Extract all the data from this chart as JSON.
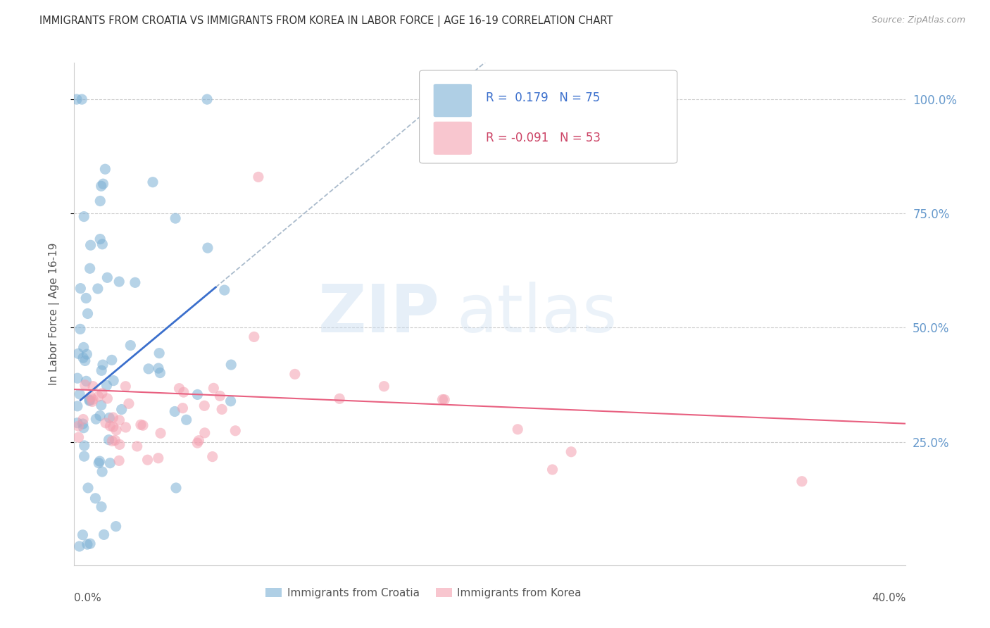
{
  "title": "IMMIGRANTS FROM CROATIA VS IMMIGRANTS FROM KOREA IN LABOR FORCE | AGE 16-19 CORRELATION CHART",
  "source": "Source: ZipAtlas.com",
  "ylabel": "In Labor Force | Age 16-19",
  "ytick_labels": [
    "100.0%",
    "75.0%",
    "50.0%",
    "25.0%"
  ],
  "ytick_values": [
    1.0,
    0.75,
    0.5,
    0.25
  ],
  "xlim": [
    0.0,
    0.4
  ],
  "ylim": [
    -0.02,
    1.08
  ],
  "r_croatia": 0.179,
  "n_croatia": 75,
  "r_korea": -0.091,
  "n_korea": 53,
  "color_croatia": "#7BAFD4",
  "color_korea": "#F4A0B0",
  "line_color_croatia": "#3B6FCC",
  "line_color_korea": "#E86080",
  "line_color_dash": "#AABBCC",
  "background_color": "#FFFFFF",
  "grid_color": "#CCCCCC",
  "right_tick_color": "#6699CC",
  "title_color": "#333333",
  "source_color": "#999999",
  "axis_label_color": "#555555",
  "legend_border_color": "#BBBBBB",
  "legend_text_cro_color": "#3B6FCC",
  "legend_text_kor_color": "#CC4466"
}
